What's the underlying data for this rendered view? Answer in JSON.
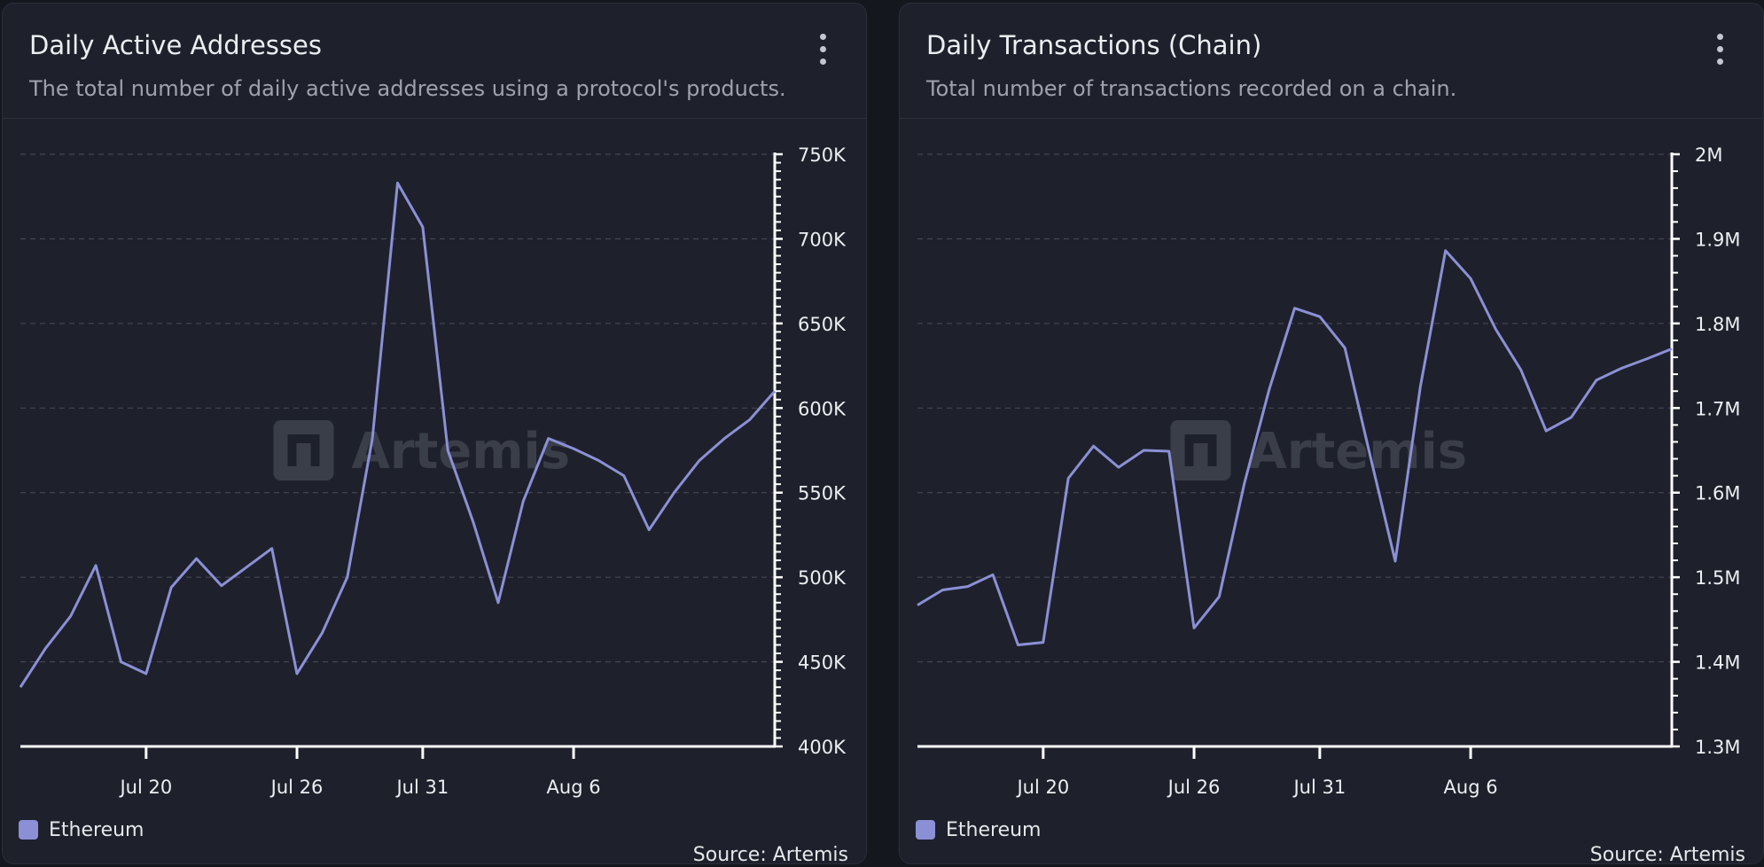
{
  "cards": [
    {
      "title": "Daily Active Addresses",
      "subtitle": "The total number of daily active addresses using a protocol's products.",
      "legend_label": "Ethereum",
      "source": "Source: Artemis",
      "watermark": "Artemis"
    },
    {
      "title": "Daily Transactions (Chain)",
      "subtitle": "Total number of transactions recorded on a chain.",
      "legend_label": "Ethereum",
      "source": "Source: Artemis",
      "watermark": "Artemis"
    }
  ],
  "colors": {
    "series": "#8b90d6",
    "grid": "#4a4e5a",
    "axis": "#ffffff"
  },
  "chart_data": [
    {
      "type": "line",
      "title": "Daily Active Addresses",
      "series": [
        {
          "name": "Ethereum",
          "x": [
            "Jul 15",
            "Jul 16",
            "Jul 17",
            "Jul 18",
            "Jul 19",
            "Jul 20",
            "Jul 21",
            "Jul 22",
            "Jul 23",
            "Jul 24",
            "Jul 25",
            "Jul 26",
            "Jul 27",
            "Jul 28",
            "Jul 29",
            "Jul 30",
            "Jul 31",
            "Aug 1",
            "Aug 2",
            "Aug 3",
            "Aug 4",
            "Aug 5",
            "Aug 6",
            "Aug 7",
            "Aug 8",
            "Aug 9",
            "Aug 10",
            "Aug 11",
            "Aug 12",
            "Aug 13",
            "Aug 14"
          ],
          "values": [
            435000,
            458000,
            477000,
            507000,
            450000,
            443000,
            494000,
            511000,
            495000,
            506000,
            517000,
            443000,
            467000,
            500000,
            582000,
            733000,
            707000,
            575000,
            533000,
            485000,
            545000,
            582000,
            576000,
            569000,
            560000,
            528000,
            550000,
            569000,
            582000,
            593000,
            610000
          ]
        }
      ],
      "x_ticks": [
        "Jul 20",
        "Jul 26",
        "Jul 31",
        "Aug 6"
      ],
      "y_ticks": [
        "400K",
        "450K",
        "500K",
        "550K",
        "600K",
        "650K",
        "700K",
        "750K"
      ],
      "ylim": [
        400000,
        750000
      ],
      "grid": true,
      "legend_position": "bottom-left"
    },
    {
      "type": "line",
      "title": "Daily Transactions (Chain)",
      "series": [
        {
          "name": "Ethereum",
          "x": [
            "Jul 15",
            "Jul 16",
            "Jul 17",
            "Jul 18",
            "Jul 19",
            "Jul 20",
            "Jul 21",
            "Jul 22",
            "Jul 23",
            "Jul 24",
            "Jul 25",
            "Jul 26",
            "Jul 27",
            "Jul 28",
            "Jul 29",
            "Jul 30",
            "Jul 31",
            "Aug 1",
            "Aug 2",
            "Aug 3",
            "Aug 4",
            "Aug 5",
            "Aug 6",
            "Aug 7",
            "Aug 8",
            "Aug 9",
            "Aug 10",
            "Aug 11",
            "Aug 12",
            "Aug 13",
            "Aug 14"
          ],
          "values": [
            1467000,
            1485000,
            1489000,
            1503000,
            1420000,
            1423000,
            1617000,
            1655000,
            1630000,
            1650000,
            1649000,
            1440000,
            1477000,
            1611000,
            1723000,
            1818000,
            1808000,
            1771000,
            1644000,
            1519000,
            1725000,
            1886000,
            1853000,
            1793000,
            1745000,
            1673000,
            1689000,
            1733000,
            1747000,
            1758000,
            1770000
          ]
        }
      ],
      "x_ticks": [
        "Jul 20",
        "Jul 26",
        "Jul 31",
        "Aug 6"
      ],
      "y_ticks": [
        "1.3M",
        "1.4M",
        "1.5M",
        "1.6M",
        "1.7M",
        "1.8M",
        "1.9M",
        "2M"
      ],
      "ylim": [
        1300000,
        2000000
      ],
      "grid": true,
      "legend_position": "bottom-left"
    }
  ]
}
